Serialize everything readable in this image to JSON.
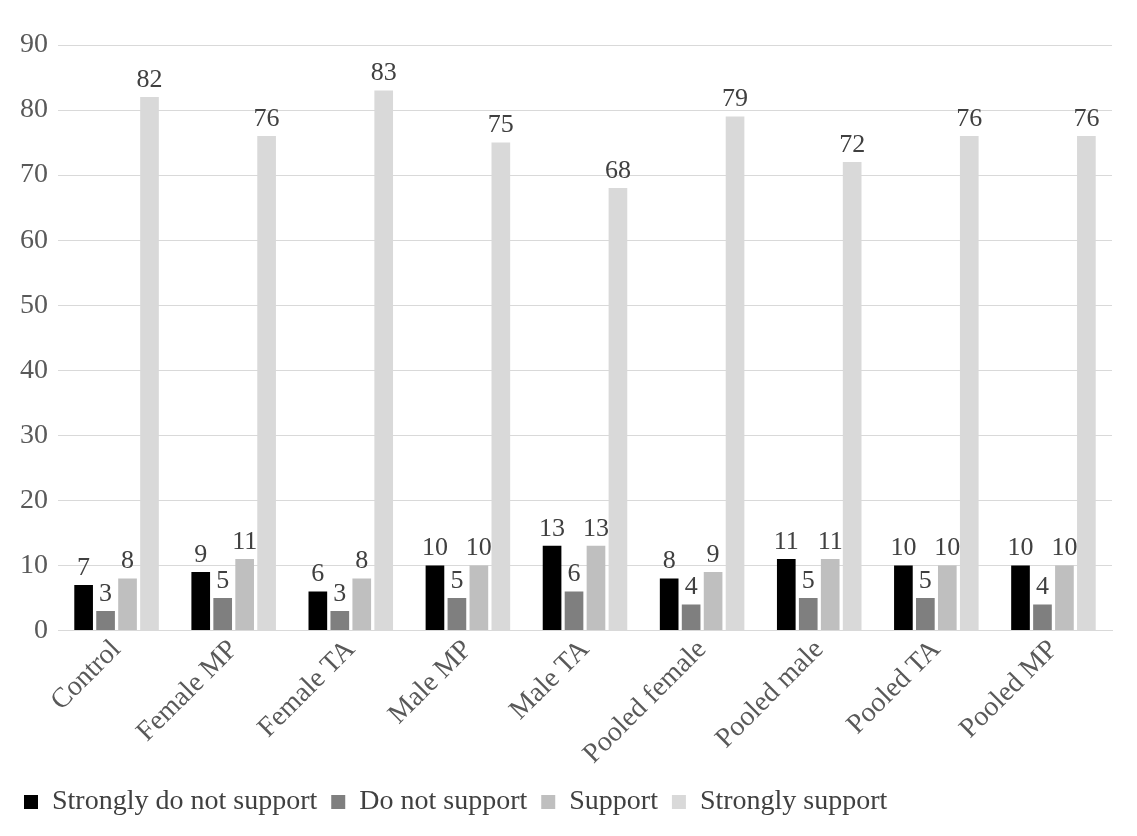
{
  "chart_data": {
    "type": "bar",
    "categories": [
      "Control",
      "Female MP",
      "Female TA",
      "Male MP",
      "Male TA",
      "Pooled female",
      "Pooled male",
      "Pooled TA",
      "Pooled MP"
    ],
    "series": [
      {
        "name": "Strongly do not support",
        "color": "#000000",
        "values": [
          7,
          9,
          6,
          10,
          13,
          8,
          11,
          10,
          10
        ]
      },
      {
        "name": "Do not support",
        "color": "#7f7f7f",
        "values": [
          3,
          5,
          3,
          5,
          6,
          4,
          5,
          5,
          4
        ]
      },
      {
        "name": "Support",
        "color": "#bfbfbf",
        "values": [
          8,
          11,
          8,
          10,
          13,
          9,
          11,
          10,
          10
        ]
      },
      {
        "name": "Strongly support",
        "color": "#d9d9d9",
        "values": [
          82,
          76,
          83,
          75,
          68,
          79,
          72,
          76,
          76
        ]
      }
    ],
    "ylim": [
      0,
      90
    ],
    "yticks": [
      0,
      10,
      20,
      30,
      40,
      50,
      60,
      70,
      80,
      90
    ],
    "grid": "y",
    "legend": "bottom",
    "data_labels": true
  }
}
